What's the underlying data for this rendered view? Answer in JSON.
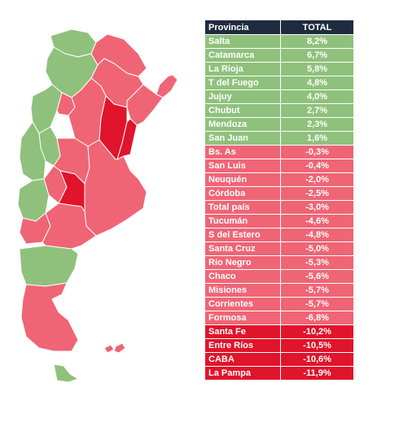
{
  "table": {
    "header": {
      "provincia": "Provincia",
      "total": "TOTAL"
    },
    "rows": [
      {
        "provincia": "Salta",
        "total": "8,2%",
        "group": "g"
      },
      {
        "provincia": "Catamarca",
        "total": "6,7%",
        "group": "g"
      },
      {
        "provincia": "La Rioja",
        "total": "5,8%",
        "group": "g"
      },
      {
        "provincia": "T del Fuego",
        "total": "4,8%",
        "group": "g"
      },
      {
        "provincia": "Jujuy",
        "total": "4,0%",
        "group": "g"
      },
      {
        "provincia": "Chubut",
        "total": "2,7%",
        "group": "g"
      },
      {
        "provincia": "Mendoza",
        "total": "2,3%",
        "group": "g"
      },
      {
        "provincia": "San Juan",
        "total": "1,6%",
        "group": "g"
      },
      {
        "provincia": "Bs. As",
        "total": "-0,3%",
        "group": "p"
      },
      {
        "provincia": "San Luis",
        "total": "-0,4%",
        "group": "p"
      },
      {
        "provincia": "Neuquén",
        "total": "-2,0%",
        "group": "p"
      },
      {
        "provincia": "Córdoba",
        "total": "-2,5%",
        "group": "p"
      },
      {
        "provincia": "Total país",
        "total": "-3,0%",
        "group": "p"
      },
      {
        "provincia": "Tucumán",
        "total": "-4,6%",
        "group": "p"
      },
      {
        "provincia": "S del Estero",
        "total": "-4,8%",
        "group": "p"
      },
      {
        "provincia": "Santa Cruz",
        "total": "-5,0%",
        "group": "p"
      },
      {
        "provincia": "Río Negro",
        "total": "-5,3%",
        "group": "p"
      },
      {
        "provincia": "Chaco",
        "total": "-5,6%",
        "group": "p"
      },
      {
        "provincia": "Misiones",
        "total": "-5,7%",
        "group": "p"
      },
      {
        "provincia": "Corrientes",
        "total": "-5,7%",
        "group": "p"
      },
      {
        "provincia": "Formosa",
        "total": "-6,8%",
        "group": "p"
      },
      {
        "provincia": "Santa Fe",
        "total": "-10,2%",
        "group": "r"
      },
      {
        "provincia": "Entre Ríos",
        "total": "-10,5%",
        "group": "r"
      },
      {
        "provincia": "CABA",
        "total": "-10,6%",
        "group": "r"
      },
      {
        "provincia": "La Pampa",
        "total": "-11,9%",
        "group": "r"
      }
    ]
  },
  "colors": {
    "green": "#8fc17c",
    "pink": "#ef6575",
    "red": "#e0142a",
    "header": "#1f2b3e"
  }
}
